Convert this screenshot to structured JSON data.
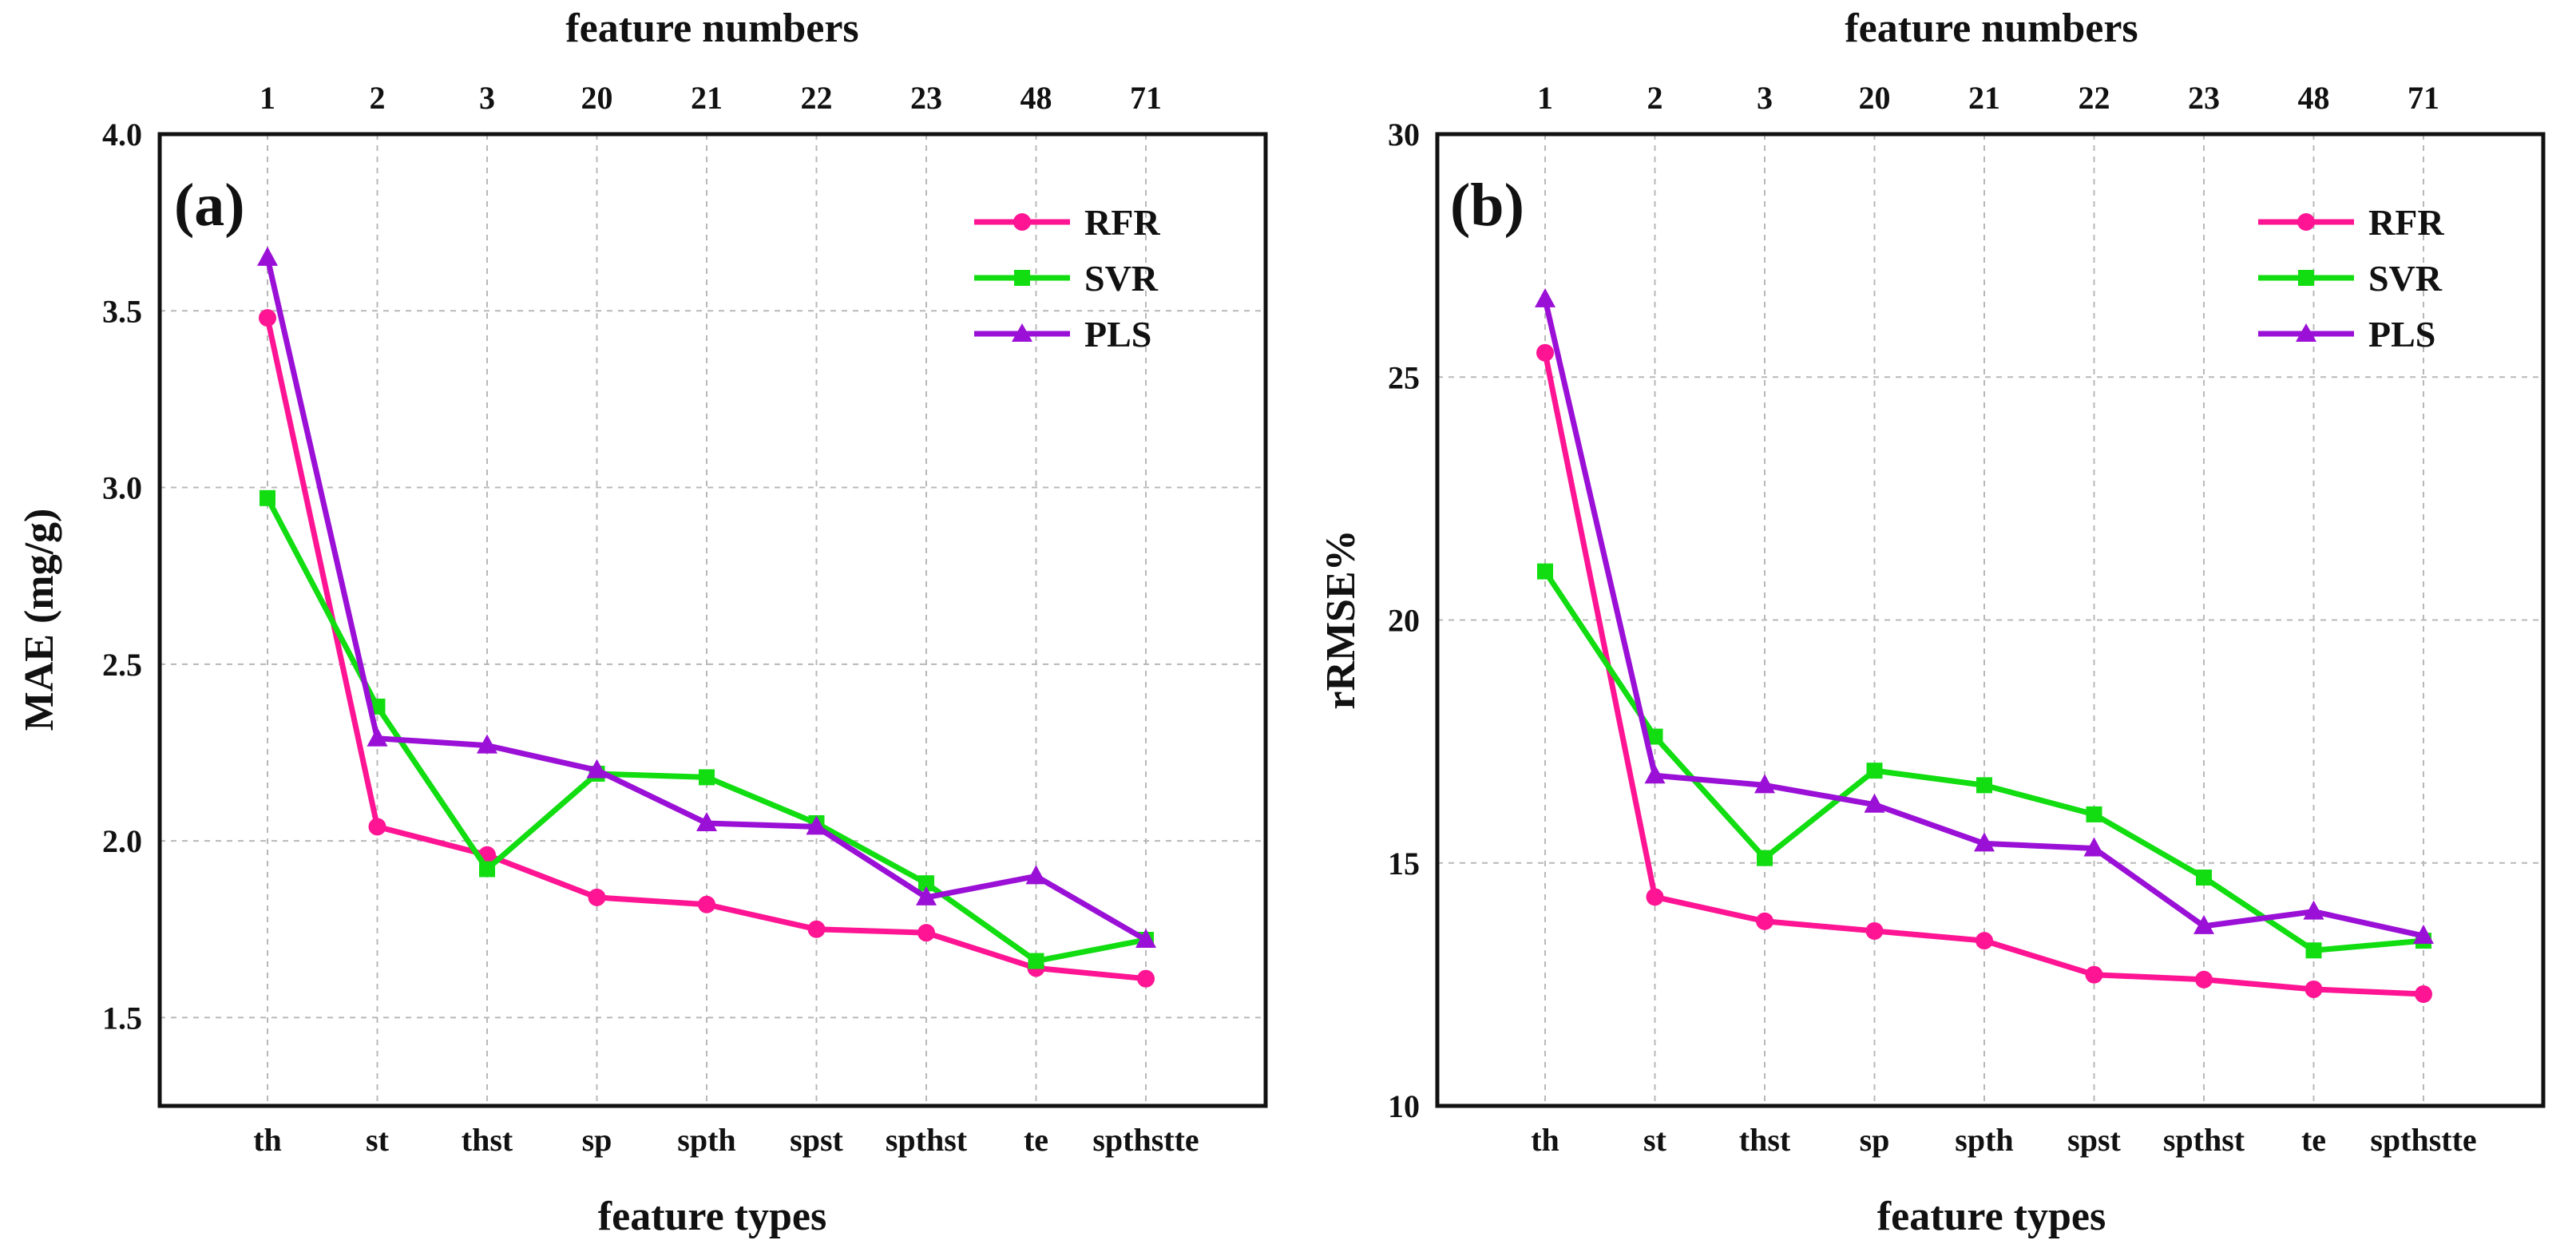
{
  "chart_data": [
    {
      "type": "line",
      "panel_label": "(a)",
      "top_xlabel": "feature numbers",
      "xlabel": "feature types",
      "ylabel": "MAE (mg/g)",
      "categories": [
        "th",
        "st",
        "thst",
        "sp",
        "spth",
        "spst",
        "spthst",
        "te",
        "spthstte"
      ],
      "top_categories": [
        "1",
        "2",
        "3",
        "20",
        "21",
        "22",
        "23",
        "48",
        "71"
      ],
      "ylim": [
        1.25,
        4.0
      ],
      "yticks": [
        1.5,
        2.0,
        2.5,
        3.0,
        3.5,
        4.0
      ],
      "ytick_labels": [
        "1.5",
        "2.0",
        "2.5",
        "3.0",
        "3.5",
        "4.0"
      ],
      "grid": true,
      "legend_position": "top-right",
      "series": [
        {
          "name": "RFR",
          "color": "#ff1493",
          "marker": "circle",
          "values": [
            3.48,
            2.04,
            1.96,
            1.84,
            1.82,
            1.75,
            1.74,
            1.64,
            1.61
          ]
        },
        {
          "name": "SVR",
          "color": "#11dd11",
          "marker": "square",
          "values": [
            2.97,
            2.38,
            1.92,
            2.19,
            2.18,
            2.05,
            1.88,
            1.66,
            1.72
          ]
        },
        {
          "name": "PLS",
          "color": "#9a10d6",
          "marker": "triangle",
          "values": [
            3.65,
            2.29,
            2.27,
            2.2,
            2.05,
            2.04,
            1.84,
            1.9,
            1.72
          ]
        }
      ]
    },
    {
      "type": "line",
      "panel_label": "(b)",
      "top_xlabel": "feature numbers",
      "xlabel": "feature types",
      "ylabel": "rRMSE%",
      "categories": [
        "th",
        "st",
        "thst",
        "sp",
        "spth",
        "spst",
        "spthst",
        "te",
        "spthstte"
      ],
      "top_categories": [
        "1",
        "2",
        "3",
        "20",
        "21",
        "22",
        "23",
        "48",
        "71"
      ],
      "ylim": [
        10,
        30
      ],
      "yticks": [
        10,
        15,
        20,
        25,
        30
      ],
      "ytick_labels": [
        "10",
        "15",
        "20",
        "25",
        "30"
      ],
      "grid": true,
      "legend_position": "top-right",
      "series": [
        {
          "name": "RFR",
          "color": "#ff1493",
          "marker": "circle",
          "values": [
            25.5,
            14.3,
            13.8,
            13.6,
            13.4,
            12.7,
            12.6,
            12.4,
            12.3
          ]
        },
        {
          "name": "SVR",
          "color": "#11dd11",
          "marker": "square",
          "values": [
            21.0,
            17.6,
            15.1,
            16.9,
            16.6,
            16.0,
            14.7,
            13.2,
            13.4
          ]
        },
        {
          "name": "PLS",
          "color": "#9a10d6",
          "marker": "triangle",
          "values": [
            26.6,
            16.8,
            16.6,
            16.2,
            15.4,
            15.3,
            13.7,
            14.0,
            13.5
          ]
        }
      ]
    }
  ]
}
